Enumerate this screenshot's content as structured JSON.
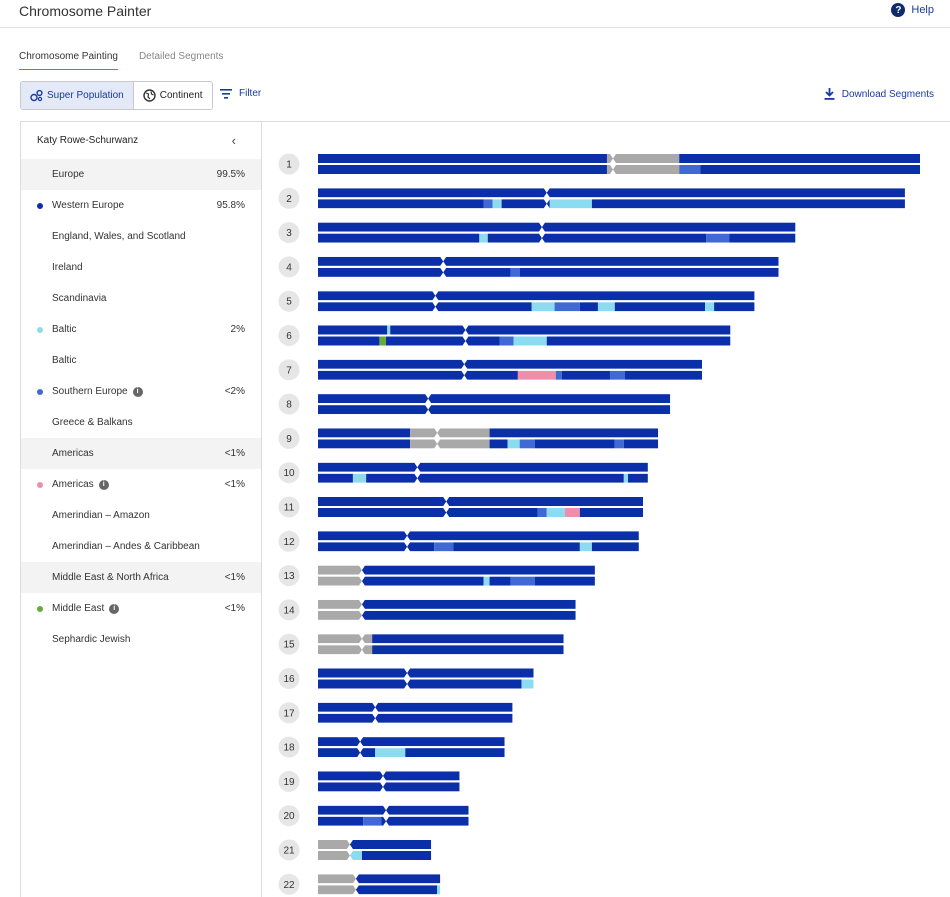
{
  "app": {
    "title": "Chromosome Painter",
    "help_label": "Help"
  },
  "tabs": [
    {
      "label": "Chromosome Painting",
      "active": true
    },
    {
      "label": "Detailed Segments",
      "active": false
    }
  ],
  "toolbar": {
    "view_options": [
      {
        "label": "Super Population",
        "icon": "super-population-icon",
        "active": true
      },
      {
        "label": "Continent",
        "icon": "globe-icon",
        "active": false
      }
    ],
    "filter_label": "Filter",
    "download_label": "Download Segments"
  },
  "sidebar": {
    "person_name": "Katy Rowe-Schurwanz",
    "rows": [
      {
        "label": "Europe",
        "pct": "99.5%",
        "kind": "group",
        "dot": null,
        "info": false
      },
      {
        "label": "Western Europe",
        "pct": "95.8%",
        "kind": "pop",
        "dot": "#0a2fa8",
        "info": false
      },
      {
        "label": "England, Wales, and Scotland",
        "pct": "",
        "kind": "sub",
        "dot": null,
        "info": false
      },
      {
        "label": "Ireland",
        "pct": "",
        "kind": "sub",
        "dot": null,
        "info": false
      },
      {
        "label": "Scandinavia",
        "pct": "",
        "kind": "sub",
        "dot": null,
        "info": false
      },
      {
        "label": "Baltic",
        "pct": "2%",
        "kind": "pop",
        "dot": "#8bdcf0",
        "info": false
      },
      {
        "label": "Baltic",
        "pct": "",
        "kind": "sub",
        "dot": null,
        "info": false
      },
      {
        "label": "Southern Europe",
        "pct": "<2%",
        "kind": "pop",
        "dot": "#4169d4",
        "info": true
      },
      {
        "label": "Greece & Balkans",
        "pct": "",
        "kind": "sub",
        "dot": null,
        "info": false
      },
      {
        "label": "Americas",
        "pct": "<1%",
        "kind": "group",
        "dot": null,
        "info": false
      },
      {
        "label": "Americas",
        "pct": "<1%",
        "kind": "pop",
        "dot": "#ef8eaa",
        "info": true
      },
      {
        "label": "Amerindian – Amazon",
        "pct": "",
        "kind": "sub",
        "dot": null,
        "info": false
      },
      {
        "label": "Amerindian – Andes & Caribbean",
        "pct": "",
        "kind": "sub",
        "dot": null,
        "info": false
      },
      {
        "label": "Middle East & North Africa",
        "pct": "<1%",
        "kind": "group",
        "dot": null,
        "info": false
      },
      {
        "label": "Middle East",
        "pct": "<1%",
        "kind": "pop",
        "dot": "#6aaa3a",
        "info": true
      },
      {
        "label": "Sephardic Jewish",
        "pct": "",
        "kind": "sub",
        "dot": null,
        "info": false
      }
    ]
  },
  "colors": {
    "western_europe": "#0a2fa8",
    "baltic": "#8bdcf0",
    "southern_europe": "#4169d4",
    "americas": "#ef8eaa",
    "middle_east": "#6aaa3a",
    "no_data": "#a9a9a9"
  },
  "chart_data": {
    "type": "chromosome-painting",
    "note_units": "positions in % of chromosome 1 length",
    "chromosomes": [
      {
        "num": "1",
        "length": 100,
        "centromere": 49,
        "top": [
          [
            "western_europe",
            0,
            48
          ],
          [
            "no_data",
            48,
            60
          ],
          [
            "western_europe",
            60,
            100
          ]
        ],
        "bottom": [
          [
            "western_europe",
            0,
            48
          ],
          [
            "no_data",
            48,
            60
          ],
          [
            "southern_europe",
            60,
            63.5
          ],
          [
            "western_europe",
            63.5,
            100
          ]
        ]
      },
      {
        "num": "2",
        "length": 97.5,
        "centromere": 38,
        "top": [
          [
            "western_europe",
            0,
            97.5
          ]
        ],
        "bottom": [
          [
            "western_europe",
            0,
            27.5
          ],
          [
            "southern_europe",
            27.5,
            29
          ],
          [
            "baltic",
            29,
            30.5
          ],
          [
            "western_europe",
            30.5,
            38.5
          ],
          [
            "baltic",
            38.5,
            45.5
          ],
          [
            "western_europe",
            45.5,
            97.5
          ]
        ]
      },
      {
        "num": "3",
        "length": 79.3,
        "centromere": 37.2,
        "top": [
          [
            "western_europe",
            0,
            79.3
          ]
        ],
        "bottom": [
          [
            "western_europe",
            0,
            26.8
          ],
          [
            "baltic",
            26.8,
            28.2
          ],
          [
            "western_europe",
            28.2,
            64.5
          ],
          [
            "southern_europe",
            64.5,
            68.3
          ],
          [
            "western_europe",
            68.3,
            79.3
          ]
        ]
      },
      {
        "num": "4",
        "length": 76.5,
        "centromere": 20.8,
        "top": [
          [
            "western_europe",
            0,
            76.5
          ]
        ],
        "bottom": [
          [
            "western_europe",
            0,
            32
          ],
          [
            "southern_europe",
            32,
            33.5
          ],
          [
            "western_europe",
            33.5,
            76.5
          ]
        ]
      },
      {
        "num": "5",
        "length": 72.5,
        "centromere": 19.5,
        "top": [
          [
            "western_europe",
            0,
            72.5
          ]
        ],
        "bottom": [
          [
            "western_europe",
            0,
            35.5
          ],
          [
            "baltic",
            35.5,
            39.3
          ],
          [
            "southern_europe",
            39.3,
            43.5
          ],
          [
            "western_europe",
            43.5,
            46.5
          ],
          [
            "baltic",
            46.5,
            49.3
          ],
          [
            "western_europe",
            49.3,
            64.3
          ],
          [
            "baltic",
            64.3,
            65.8
          ],
          [
            "western_europe",
            65.8,
            72.5
          ]
        ]
      },
      {
        "num": "6",
        "length": 68.5,
        "centromere": 24.5,
        "top": [
          [
            "western_europe",
            0,
            11.5
          ],
          [
            "baltic",
            11.5,
            12
          ],
          [
            "western_europe",
            12,
            68.5
          ]
        ],
        "bottom": [
          [
            "western_europe",
            0,
            10.2
          ],
          [
            "middle_east",
            10.2,
            11.3
          ],
          [
            "western_europe",
            11.3,
            30.2
          ],
          [
            "southern_europe",
            30.2,
            32.5
          ],
          [
            "baltic",
            32.5,
            38
          ],
          [
            "western_europe",
            38,
            68.5
          ]
        ]
      },
      {
        "num": "7",
        "length": 63.8,
        "centromere": 24.3,
        "top": [
          [
            "western_europe",
            0,
            63.8
          ]
        ],
        "bottom": [
          [
            "western_europe",
            0,
            33.2
          ],
          [
            "americas",
            33.2,
            39.5
          ],
          [
            "southern_europe",
            39.5,
            40.5
          ],
          [
            "western_europe",
            40.5,
            48.5
          ],
          [
            "southern_europe",
            48.5,
            51
          ],
          [
            "western_europe",
            51,
            63.8
          ]
        ]
      },
      {
        "num": "8",
        "length": 58.5,
        "centromere": 18.3,
        "top": [
          [
            "western_europe",
            0,
            58.5
          ]
        ],
        "bottom": [
          [
            "western_europe",
            0,
            58.5
          ]
        ]
      },
      {
        "num": "9",
        "length": 56.5,
        "centromere": 19.8,
        "top": [
          [
            "western_europe",
            0,
            15.3
          ],
          [
            "no_data",
            15.3,
            28.5
          ],
          [
            "western_europe",
            28.5,
            56.5
          ]
        ],
        "bottom": [
          [
            "western_europe",
            0,
            15.3
          ],
          [
            "no_data",
            15.3,
            28.5
          ],
          [
            "western_europe",
            28.5,
            31.5
          ],
          [
            "baltic",
            31.5,
            33.5
          ],
          [
            "southern_europe",
            33.5,
            36
          ],
          [
            "western_europe",
            36,
            49.3
          ],
          [
            "southern_europe",
            49.3,
            50.8
          ],
          [
            "western_europe",
            50.8,
            56.5
          ]
        ]
      },
      {
        "num": "10",
        "length": 54.8,
        "centromere": 16.5,
        "top": [
          [
            "western_europe",
            0,
            54.8
          ]
        ],
        "bottom": [
          [
            "western_europe",
            0,
            5.8
          ],
          [
            "baltic",
            5.8,
            8
          ],
          [
            "western_europe",
            8,
            50.8
          ],
          [
            "baltic",
            50.8,
            51.5
          ],
          [
            "western_europe",
            51.5,
            54.8
          ]
        ]
      },
      {
        "num": "11",
        "length": 54,
        "centromere": 21.3,
        "top": [
          [
            "western_europe",
            0,
            54
          ]
        ],
        "bottom": [
          [
            "western_europe",
            0,
            36.5
          ],
          [
            "southern_europe",
            36.5,
            38
          ],
          [
            "baltic",
            38,
            41
          ],
          [
            "americas",
            41,
            43.5
          ],
          [
            "western_europe",
            43.5,
            54
          ]
        ]
      },
      {
        "num": "12",
        "length": 53.3,
        "centromere": 14.8,
        "top": [
          [
            "western_europe",
            0,
            53.3
          ]
        ],
        "bottom": [
          [
            "western_europe",
            0,
            19.3
          ],
          [
            "southern_europe",
            19.3,
            22.5
          ],
          [
            "western_europe",
            22.5,
            43.5
          ],
          [
            "baltic",
            43.5,
            45.5
          ],
          [
            "western_europe",
            45.5,
            53.3
          ]
        ]
      },
      {
        "num": "13",
        "length": 46,
        "centromere": 7.3,
        "top": [
          [
            "no_data",
            0,
            7.3
          ],
          [
            "western_europe",
            7.3,
            46
          ]
        ],
        "bottom": [
          [
            "no_data",
            0,
            7.3
          ],
          [
            "western_europe",
            7.3,
            27.5
          ],
          [
            "baltic",
            27.5,
            28.5
          ],
          [
            "western_europe",
            28.5,
            32
          ],
          [
            "southern_europe",
            32,
            36
          ],
          [
            "western_europe",
            36,
            46
          ]
        ]
      },
      {
        "num": "14",
        "length": 42.8,
        "centromere": 7.3,
        "top": [
          [
            "no_data",
            0,
            7.3
          ],
          [
            "western_europe",
            7.3,
            42.8
          ]
        ],
        "bottom": [
          [
            "no_data",
            0,
            7.3
          ],
          [
            "western_europe",
            7.3,
            42.8
          ]
        ]
      },
      {
        "num": "15",
        "length": 40.8,
        "centromere": 7.3,
        "top": [
          [
            "no_data",
            0,
            9
          ],
          [
            "western_europe",
            9,
            40.8
          ]
        ],
        "bottom": [
          [
            "no_data",
            0,
            9
          ],
          [
            "western_europe",
            9,
            40.8
          ]
        ]
      },
      {
        "num": "16",
        "length": 35.8,
        "centromere": 14.8,
        "top": [
          [
            "western_europe",
            0,
            35.8
          ]
        ],
        "bottom": [
          [
            "western_europe",
            0,
            33.8
          ],
          [
            "baltic",
            33.8,
            35.8
          ]
        ]
      },
      {
        "num": "17",
        "length": 32.3,
        "centromere": 9.5,
        "top": [
          [
            "western_europe",
            0,
            32.3
          ]
        ],
        "bottom": [
          [
            "western_europe",
            0,
            32.3
          ]
        ]
      },
      {
        "num": "18",
        "length": 31,
        "centromere": 7,
        "top": [
          [
            "western_europe",
            0,
            31
          ]
        ],
        "bottom": [
          [
            "western_europe",
            0,
            9.5
          ],
          [
            "baltic",
            9.5,
            14.5
          ],
          [
            "western_europe",
            14.5,
            31
          ]
        ]
      },
      {
        "num": "19",
        "length": 23.5,
        "centromere": 10.8,
        "top": [
          [
            "western_europe",
            0,
            23.5
          ]
        ],
        "bottom": [
          [
            "western_europe",
            0,
            23.5
          ]
        ]
      },
      {
        "num": "20",
        "length": 25,
        "centromere": 11.3,
        "top": [
          [
            "western_europe",
            0,
            25
          ]
        ],
        "bottom": [
          [
            "western_europe",
            0,
            7.5
          ],
          [
            "southern_europe",
            7.5,
            10.5
          ],
          [
            "western_europe",
            10.5,
            25
          ]
        ]
      },
      {
        "num": "21",
        "length": 18.8,
        "centromere": 5.3,
        "top": [
          [
            "no_data",
            0,
            5.3
          ],
          [
            "western_europe",
            5.3,
            18.8
          ]
        ],
        "bottom": [
          [
            "no_data",
            0,
            5.3
          ],
          [
            "baltic",
            5.3,
            7.3
          ],
          [
            "western_europe",
            7.3,
            18.8
          ]
        ]
      },
      {
        "num": "22",
        "length": 20.3,
        "centromere": 6.3,
        "top": [
          [
            "no_data",
            0,
            6.3
          ],
          [
            "western_europe",
            6.3,
            20.3
          ]
        ],
        "bottom": [
          [
            "no_data",
            0,
            6.3
          ],
          [
            "western_europe",
            6.3,
            19.8
          ],
          [
            "baltic",
            19.8,
            20.3
          ]
        ]
      }
    ]
  }
}
